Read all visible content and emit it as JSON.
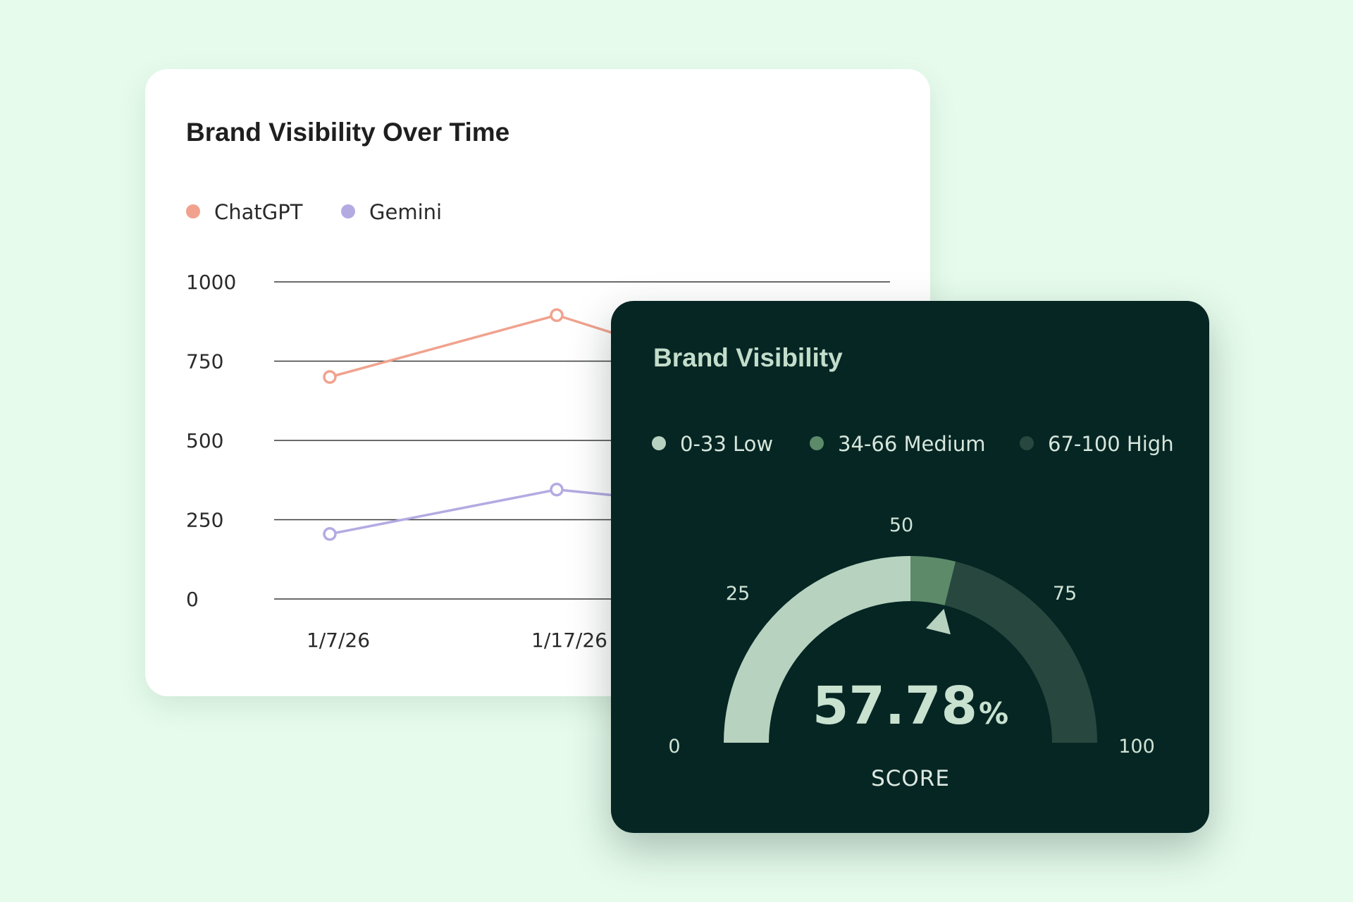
{
  "line_card": {
    "title": "Brand Visibility Over Time"
  },
  "gauge_card": {
    "title": "Brand Visibility",
    "legend": [
      {
        "label": "0-33 Low",
        "color": "#b7d3c0"
      },
      {
        "label": "34-66 Medium",
        "color": "#5d8a69"
      },
      {
        "label": "67-100 High",
        "color": "#28473f"
      }
    ],
    "score_value": "57.78",
    "score_unit": "%",
    "score_label": "SCORE"
  },
  "chart_data": [
    {
      "type": "line",
      "title": "Brand Visibility Over Time",
      "legend_position": "top-left",
      "grid": true,
      "ylim": [
        0,
        1000
      ],
      "y_ticks": [
        "1000",
        "750",
        "500",
        "250",
        "0"
      ],
      "x_ticks": [
        "1/7/26",
        "1/17/26"
      ],
      "series": [
        {
          "name": "ChatGPT",
          "color": "#f0a28e",
          "points": [
            {
              "x": "1/7/26",
              "y": 700
            },
            {
              "x": "1/17/26",
              "y": 895
            }
          ]
        },
        {
          "name": "Gemini",
          "color": "#b4aae2",
          "points": [
            {
              "x": "1/7/26",
              "y": 205
            },
            {
              "x": "1/17/26",
              "y": 345
            }
          ]
        }
      ]
    },
    {
      "type": "gauge",
      "title": "Brand Visibility",
      "value": 57.78,
      "range": [
        0,
        100
      ],
      "ticks": [
        "0",
        "25",
        "50",
        "75",
        "100"
      ],
      "bands": [
        {
          "from": 0,
          "to": 50,
          "color": "#b7d3c0"
        },
        {
          "from": 50,
          "to": 57.78,
          "color": "#5d8a69"
        },
        {
          "from": 57.78,
          "to": 100,
          "color": "#28473f"
        }
      ]
    }
  ]
}
